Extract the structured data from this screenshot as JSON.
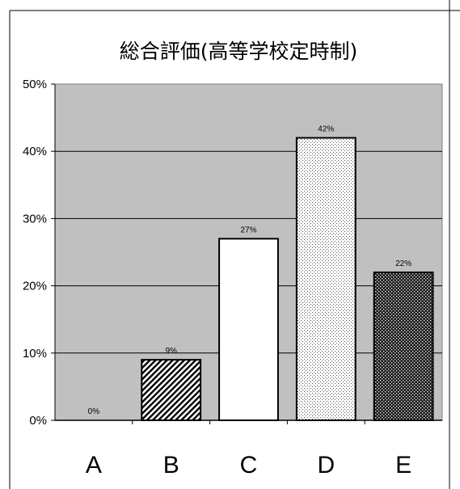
{
  "chart_data": {
    "type": "bar",
    "title": "総合評価(高等学校定時制)",
    "categories": [
      "A",
      "B",
      "C",
      "D",
      "E"
    ],
    "values": [
      0,
      9,
      27,
      42,
      22
    ],
    "value_labels": [
      "0%",
      "9%",
      "27%",
      "42%",
      "22%"
    ],
    "bar_patterns": [
      "none",
      "diagonal-hatch",
      "white",
      "light-dots",
      "dark-dots"
    ],
    "yticks": [
      "0%",
      "10%",
      "20%",
      "30%",
      "40%",
      "50%"
    ],
    "ylim": [
      0,
      50
    ],
    "grid": true,
    "legend": "none",
    "colors": {
      "plot_background": "#c0c0c0",
      "bar_edge": "#000000",
      "gridline": "#000000"
    }
  }
}
